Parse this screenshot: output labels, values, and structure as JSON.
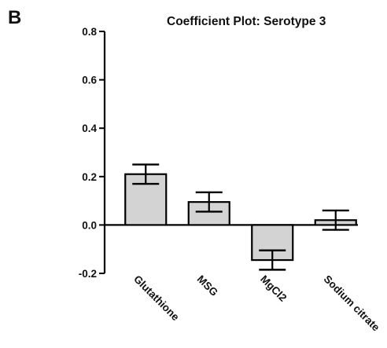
{
  "panel_label": "B",
  "chart_data": {
    "type": "bar",
    "title": "Coefficient Plot: Serotype 3",
    "xlabel": "",
    "ylabel": "",
    "categories": [
      "Glutathione",
      "MSG",
      "MgCl2",
      "Sodium citrate"
    ],
    "values": [
      0.21,
      0.095,
      -0.145,
      0.02
    ],
    "error": [
      0.04,
      0.04,
      0.04,
      0.04
    ],
    "ylim": [
      -0.2,
      0.8
    ],
    "yticks": [
      -0.2,
      0.0,
      0.2,
      0.4,
      0.6,
      0.8
    ],
    "ytick_labels": [
      "-0.2",
      "0.0",
      "0.2",
      "0.4",
      "0.6",
      "0.8"
    ],
    "grid": false,
    "legend": "none",
    "bar_fill": "#d3d3d3",
    "bar_stroke": "#000000"
  }
}
